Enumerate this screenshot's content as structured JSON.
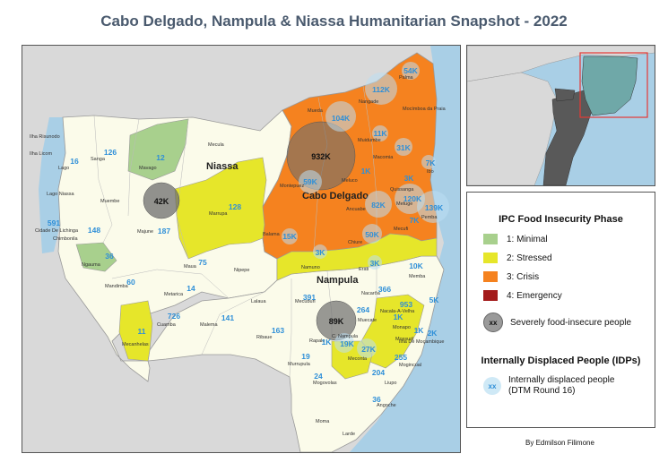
{
  "title": "Cabo Delgado, Nampula & Niassa Humanitarian Snapshot - 2022",
  "colors": {
    "minimal": "#a8d08d",
    "stressed": "#e6e62a",
    "crisis": "#f5821f",
    "emergency": "#a31a1a",
    "province": "#fbfbea",
    "ocean": "#a9cfe6",
    "outside": "#d9d9d9",
    "idp_text": "#2e8fd8"
  },
  "provinces": {
    "niassa": "Niassa",
    "cabo_delgado": "Cabo Delgado",
    "nampula": "Nampula"
  },
  "districts": {
    "ilha_risunodo": "Ilha Risunodo",
    "ilha_licom": "Ilha Licom",
    "lago": "Lago",
    "sanga": "Sanga",
    "mavago": "Mavago",
    "mecula": "Mecula",
    "lago_niassa": "Lago Niassa",
    "muembe": "Muembe",
    "cidade_lichinga": "Cidade De Lichinga",
    "chimbonila": "Chimbonila",
    "majune": "Majune",
    "marrupa": "Marrupa",
    "ngauma": "Ngauma",
    "mandimba": "Mandimba",
    "maua": "Maua",
    "nipepe": "Nipepe",
    "metarica": "Metarica",
    "cuamba": "Cuamba",
    "mecanhelas": "Mecanhelas",
    "palma": "Palma",
    "nangade": "Nangade",
    "mueda": "Mueda",
    "mocimboa": "Mocímboa da Praia",
    "muidumbe": "Muidumbe",
    "macomia": "Macomia",
    "meluco": "Meluco",
    "montepuez": "Montepuez",
    "ibo": "Ibo",
    "quissanga": "Quissanga",
    "ancuabe": "Ancuabe",
    "metuge": "Metuge",
    "mecufi": "Mecufi",
    "pemba": "Pemba",
    "balama": "Balama",
    "chiure": "Chiure",
    "namuno": "Namuno",
    "erati": "Erati",
    "lalaua": "Lalaua",
    "mecuburi": "Mecuburi",
    "nacarao": "Nacarôa",
    "memba": "Memba",
    "malema": "Malema",
    "ribaue": "Ribaue",
    "muecate": "Muecate",
    "nacala_a_velha": "Nacala-A-Velha",
    "monapo": "Monapo",
    "cidade_nampula": "C. Nampula",
    "rapale": "Rapale",
    "mossuril": "Mossuril",
    "ilha_mocambique": "Ilha De Moçambique",
    "murrupula": "Murrupula",
    "meconta": "Meconta",
    "mogovolas": "Mogovolas",
    "mogincual": "Mogincual",
    "liupo": "Liupo",
    "angoche": "Angoche",
    "moma": "Moma",
    "larde": "Larde"
  },
  "ipc_circles": {
    "niassa": "42K",
    "cabo_delgado": "932K",
    "nampula": "89K"
  },
  "idp_values": {
    "lago": "16",
    "sanga": "126",
    "mavago": "12",
    "muembe_area": "128",
    "chimbonila": "591",
    "lichinga": "148",
    "majune": "187",
    "ngauma": "36",
    "maua": "75",
    "mandimba": "60",
    "metarica": "14",
    "cuamba": "726",
    "malema": "141",
    "mecanhelas": "11",
    "palma": "54K",
    "nangade": "112K",
    "mueda": "104K",
    "muidumbe": "11K",
    "macomia": "31K",
    "meluco": "1K",
    "quissanga": "3K",
    "montepuez": "59K",
    "ancuabe": "82K",
    "metuge": "120K",
    "ibo": "7K",
    "pemba": "139K",
    "mecufi": "7K",
    "balama": "15K",
    "chiure": "50K",
    "namuno": "3K",
    "erati": "3K",
    "memba": "10K",
    "nacarao": "366",
    "mecuburi": "391",
    "muecate": "264",
    "nacala": "953",
    "nacala_porto": "5K",
    "monapo": "1K",
    "mossuril": "1K",
    "ilha": "2K",
    "ribaue": "163",
    "nampula_city": "19K",
    "rapale": "1K",
    "meconta": "27K",
    "murrupula": "19",
    "mogovolas": "24",
    "liupo": "204",
    "mogincual": "255",
    "angoche": "36"
  },
  "legend": {
    "ipc_title": "IPC Food Insecurity Phase",
    "phase1": "1: Minimal",
    "phase2": "2: Stressed",
    "phase3": "3: Crisis",
    "phase4": "4: Emergency",
    "severe_symbol": "xx",
    "severe_label": "Severely food-insecure people",
    "idp_title": "Internally Displaced People (IDPs)",
    "idp_symbol": "xx",
    "idp_label_1": "Internally displaced people",
    "idp_label_2": "(DTM Round 16)"
  },
  "credit": "By Edmilson Filimone"
}
